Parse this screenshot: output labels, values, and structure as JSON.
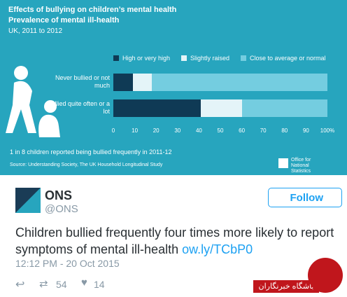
{
  "chart_data": {
    "type": "stacked-bar-horizontal",
    "title": "Effects of bullying on children’s mental health",
    "subtitle": "Prevalence of mental ill-health",
    "period": "UK, 2011 to 2012",
    "categories": [
      "Never bullied or not much",
      "Bullied quite often or a lot"
    ],
    "series": [
      {
        "name": "High or very high",
        "color": "#0f3a55",
        "values": [
          9,
          41
        ]
      },
      {
        "name": "Slightly raised",
        "color": "#e4f4f8",
        "values": [
          9,
          19
        ]
      },
      {
        "name": "Close to average or normal",
        "color": "#74cde0",
        "values": [
          82,
          40
        ]
      }
    ],
    "xlim": [
      0,
      100
    ],
    "xticks": [
      0,
      10,
      20,
      30,
      40,
      50,
      60,
      70,
      80,
      90,
      {
        "value": 100,
        "label": "100%"
      }
    ],
    "note": "1 in 8 children reported being bullied frequently in 2011-12",
    "source": "Source: Understanding Society, The UK Household Longitudinal Study",
    "logo": "Office for National Statistics"
  },
  "tweet": {
    "name": "ONS",
    "handle": "@ONS",
    "follow": "Follow",
    "text": "Children bullied frequently four times more likely to report symptoms of mental ill-health",
    "link": "ow.ly/TCbP0",
    "time": "12:12 PM - 20 Oct 2015",
    "retweets": 54,
    "likes": 14,
    "watermark": "باشگاه خبرنگاران"
  }
}
